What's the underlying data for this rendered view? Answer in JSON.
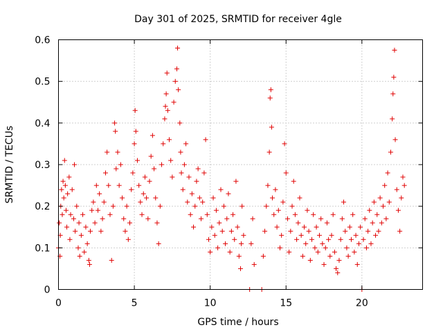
{
  "chart_data": {
    "type": "scatter",
    "title": "Day 301 of 2025, SRMTID for receiver 4gle",
    "xlabel": "GPS time / hours",
    "ylabel": "SRMTID / TECUs",
    "xlim": [
      0,
      24
    ],
    "ylim": [
      0,
      0.6
    ],
    "xticks": [
      0,
      5,
      10,
      15,
      20
    ],
    "yticks": [
      0,
      0.1,
      0.2,
      0.3,
      0.4,
      0.5,
      0.6
    ],
    "xtick_labels": [
      "0",
      "5",
      "10",
      "15",
      "20"
    ],
    "ytick_labels": [
      "0",
      "0.1",
      "0.2",
      "0.3",
      "0.4",
      "0.5",
      "0.6"
    ],
    "grid": true,
    "marker": "plus",
    "color": "#e00000",
    "series": [
      {
        "name": "SRMTID",
        "points": [
          [
            0.0,
            0.1
          ],
          [
            0.05,
            0.16
          ],
          [
            0.1,
            0.08
          ],
          [
            0.12,
            0.13
          ],
          [
            0.15,
            0.2
          ],
          [
            0.2,
            0.24
          ],
          [
            0.25,
            0.18
          ],
          [
            0.3,
            0.26
          ],
          [
            0.35,
            0.22
          ],
          [
            0.4,
            0.31
          ],
          [
            0.45,
            0.25
          ],
          [
            0.5,
            0.19
          ],
          [
            0.55,
            0.15
          ],
          [
            0.6,
            0.23
          ],
          [
            0.7,
            0.27
          ],
          [
            0.75,
            0.12
          ],
          [
            0.8,
            0.18
          ],
          [
            0.9,
            0.24
          ],
          [
            1.0,
            0.17
          ],
          [
            1.05,
            0.3
          ],
          [
            1.1,
            0.14
          ],
          [
            1.2,
            0.2
          ],
          [
            1.3,
            0.1
          ],
          [
            1.35,
            0.16
          ],
          [
            1.4,
            0.08
          ],
          [
            1.5,
            0.13
          ],
          [
            1.6,
            0.18
          ],
          [
            1.7,
            0.09
          ],
          [
            1.8,
            0.15
          ],
          [
            1.9,
            0.11
          ],
          [
            2.0,
            0.07
          ],
          [
            2.05,
            0.06
          ],
          [
            2.1,
            0.14
          ],
          [
            2.2,
            0.19
          ],
          [
            2.3,
            0.21
          ],
          [
            2.4,
            0.16
          ],
          [
            2.5,
            0.25
          ],
          [
            2.6,
            0.19
          ],
          [
            2.7,
            0.23
          ],
          [
            2.8,
            0.14
          ],
          [
            2.9,
            0.17
          ],
          [
            3.0,
            0.21
          ],
          [
            3.1,
            0.28
          ],
          [
            3.2,
            0.33
          ],
          [
            3.3,
            0.25
          ],
          [
            3.4,
            0.18
          ],
          [
            3.5,
            0.07
          ],
          [
            3.6,
            0.2
          ],
          [
            3.7,
            0.4
          ],
          [
            3.75,
            0.38
          ],
          [
            3.8,
            0.29
          ],
          [
            3.9,
            0.33
          ],
          [
            4.0,
            0.25
          ],
          [
            4.1,
            0.3
          ],
          [
            4.2,
            0.22
          ],
          [
            4.3,
            0.17
          ],
          [
            4.4,
            0.14
          ],
          [
            4.5,
            0.2
          ],
          [
            4.6,
            0.12
          ],
          [
            4.7,
            0.16
          ],
          [
            4.8,
            0.24
          ],
          [
            4.9,
            0.28
          ],
          [
            5.0,
            0.35
          ],
          [
            5.05,
            0.43
          ],
          [
            5.1,
            0.38
          ],
          [
            5.2,
            0.31
          ],
          [
            5.3,
            0.25
          ],
          [
            5.4,
            0.21
          ],
          [
            5.5,
            0.18
          ],
          [
            5.6,
            0.23
          ],
          [
            5.7,
            0.27
          ],
          [
            5.8,
            0.22
          ],
          [
            5.9,
            0.17
          ],
          [
            6.0,
            0.26
          ],
          [
            6.1,
            0.32
          ],
          [
            6.2,
            0.37
          ],
          [
            6.3,
            0.29
          ],
          [
            6.4,
            0.22
          ],
          [
            6.5,
            0.16
          ],
          [
            6.6,
            0.11
          ],
          [
            6.7,
            0.2
          ],
          [
            6.8,
            0.3
          ],
          [
            6.9,
            0.35
          ],
          [
            7.0,
            0.41
          ],
          [
            7.05,
            0.44
          ],
          [
            7.1,
            0.47
          ],
          [
            7.15,
            0.52
          ],
          [
            7.2,
            0.43
          ],
          [
            7.3,
            0.36
          ],
          [
            7.4,
            0.31
          ],
          [
            7.5,
            0.27
          ],
          [
            7.6,
            0.45
          ],
          [
            7.7,
            0.5
          ],
          [
            7.8,
            0.53
          ],
          [
            7.85,
            0.58
          ],
          [
            7.9,
            0.48
          ],
          [
            8.0,
            0.4
          ],
          [
            8.05,
            0.33
          ],
          [
            8.1,
            0.28
          ],
          [
            8.2,
            0.24
          ],
          [
            8.3,
            0.3
          ],
          [
            8.4,
            0.35
          ],
          [
            8.5,
            0.21
          ],
          [
            8.6,
            0.27
          ],
          [
            8.7,
            0.18
          ],
          [
            8.8,
            0.23
          ],
          [
            8.9,
            0.15
          ],
          [
            9.0,
            0.2
          ],
          [
            9.1,
            0.26
          ],
          [
            9.2,
            0.29
          ],
          [
            9.3,
            0.22
          ],
          [
            9.4,
            0.17
          ],
          [
            9.5,
            0.21
          ],
          [
            9.6,
            0.28
          ],
          [
            9.7,
            0.36
          ],
          [
            9.8,
            0.18
          ],
          [
            9.9,
            0.12
          ],
          [
            10.0,
            0.09
          ],
          [
            10.1,
            0.15
          ],
          [
            10.2,
            0.22
          ],
          [
            10.3,
            0.13
          ],
          [
            10.4,
            0.19
          ],
          [
            10.5,
            0.1
          ],
          [
            10.6,
            0.16
          ],
          [
            10.7,
            0.24
          ],
          [
            10.8,
            0.14
          ],
          [
            10.9,
            0.2
          ],
          [
            11.0,
            0.11
          ],
          [
            11.1,
            0.17
          ],
          [
            11.2,
            0.23
          ],
          [
            11.3,
            0.09
          ],
          [
            11.4,
            0.14
          ],
          [
            11.5,
            0.18
          ],
          [
            11.6,
            0.12
          ],
          [
            11.7,
            0.26
          ],
          [
            11.8,
            0.15
          ],
          [
            11.9,
            0.08
          ],
          [
            12.0,
            0.05
          ],
          [
            12.05,
            0.11
          ],
          [
            12.1,
            0.2
          ],
          [
            12.2,
            0.13
          ],
          [
            12.6,
            0.0
          ],
          [
            12.7,
            0.11
          ],
          [
            12.8,
            0.17
          ],
          [
            12.9,
            0.06
          ],
          [
            13.4,
            0.0
          ],
          [
            13.5,
            0.08
          ],
          [
            13.6,
            0.14
          ],
          [
            13.7,
            0.2
          ],
          [
            13.8,
            0.25
          ],
          [
            13.9,
            0.33
          ],
          [
            13.95,
            0.46
          ],
          [
            14.0,
            0.48
          ],
          [
            14.05,
            0.39
          ],
          [
            14.1,
            0.22
          ],
          [
            14.2,
            0.18
          ],
          [
            14.3,
            0.24
          ],
          [
            14.4,
            0.15
          ],
          [
            14.5,
            0.19
          ],
          [
            14.6,
            0.1
          ],
          [
            14.7,
            0.13
          ],
          [
            14.8,
            0.21
          ],
          [
            14.9,
            0.35
          ],
          [
            15.0,
            0.28
          ],
          [
            15.1,
            0.17
          ],
          [
            15.2,
            0.09
          ],
          [
            15.3,
            0.14
          ],
          [
            15.4,
            0.2
          ],
          [
            15.5,
            0.26
          ],
          [
            15.6,
            0.18
          ],
          [
            15.7,
            0.12
          ],
          [
            15.8,
            0.16
          ],
          [
            15.9,
            0.22
          ],
          [
            16.0,
            0.13
          ],
          [
            16.1,
            0.08
          ],
          [
            16.2,
            0.15
          ],
          [
            16.3,
            0.11
          ],
          [
            16.4,
            0.19
          ],
          [
            16.5,
            0.14
          ],
          [
            16.6,
            0.07
          ],
          [
            16.7,
            0.12
          ],
          [
            16.8,
            0.18
          ],
          [
            16.9,
            0.1
          ],
          [
            17.0,
            0.15
          ],
          [
            17.1,
            0.09
          ],
          [
            17.2,
            0.13
          ],
          [
            17.3,
            0.17
          ],
          [
            17.4,
            0.11
          ],
          [
            17.5,
            0.06
          ],
          [
            17.6,
            0.1
          ],
          [
            17.7,
            0.16
          ],
          [
            17.8,
            0.12
          ],
          [
            17.9,
            0.08
          ],
          [
            18.0,
            0.13
          ],
          [
            18.1,
            0.18
          ],
          [
            18.2,
            0.09
          ],
          [
            18.3,
            0.05
          ],
          [
            18.4,
            0.04
          ],
          [
            18.5,
            0.07
          ],
          [
            18.6,
            0.12
          ],
          [
            18.7,
            0.17
          ],
          [
            18.8,
            0.21
          ],
          [
            18.9,
            0.14
          ],
          [
            19.0,
            0.1
          ],
          [
            19.1,
            0.08
          ],
          [
            19.2,
            0.15
          ],
          [
            19.3,
            0.12
          ],
          [
            19.4,
            0.18
          ],
          [
            19.5,
            0.09
          ],
          [
            19.6,
            0.13
          ],
          [
            19.7,
            0.06
          ],
          [
            19.8,
            0.11
          ],
          [
            19.9,
            0.15
          ],
          [
            20.0,
            0.0
          ],
          [
            20.1,
            0.12
          ],
          [
            20.2,
            0.17
          ],
          [
            20.3,
            0.1
          ],
          [
            20.4,
            0.14
          ],
          [
            20.5,
            0.19
          ],
          [
            20.6,
            0.11
          ],
          [
            20.7,
            0.16
          ],
          [
            20.8,
            0.21
          ],
          [
            20.9,
            0.13
          ],
          [
            21.0,
            0.18
          ],
          [
            21.1,
            0.14
          ],
          [
            21.2,
            0.22
          ],
          [
            21.3,
            0.16
          ],
          [
            21.4,
            0.2
          ],
          [
            21.5,
            0.25
          ],
          [
            21.6,
            0.17
          ],
          [
            21.7,
            0.28
          ],
          [
            21.8,
            0.21
          ],
          [
            21.9,
            0.33
          ],
          [
            22.0,
            0.41
          ],
          [
            22.05,
            0.47
          ],
          [
            22.1,
            0.51
          ],
          [
            22.15,
            0.575
          ],
          [
            22.2,
            0.36
          ],
          [
            22.3,
            0.24
          ],
          [
            22.4,
            0.19
          ],
          [
            22.5,
            0.14
          ],
          [
            22.6,
            0.22
          ],
          [
            22.7,
            0.27
          ],
          [
            22.8,
            0.25
          ]
        ]
      }
    ]
  }
}
